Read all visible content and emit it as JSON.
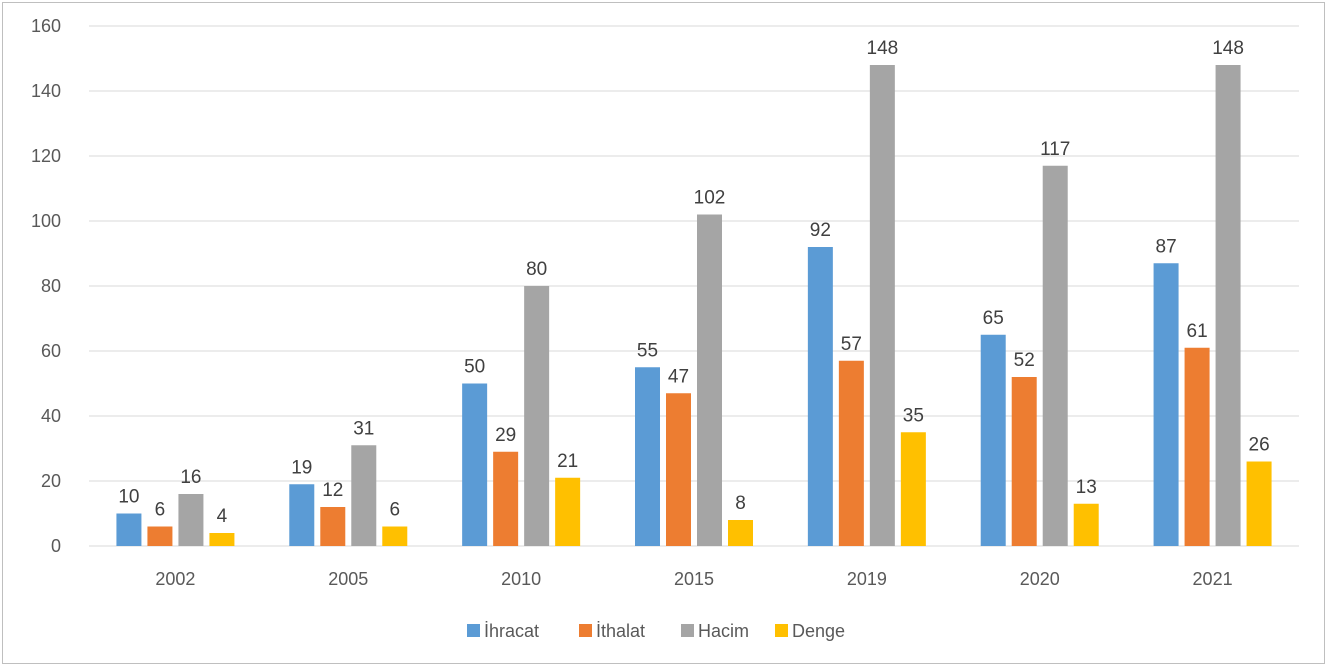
{
  "chart_data": {
    "type": "bar",
    "title": "",
    "xlabel": "",
    "ylabel": "",
    "categories": [
      "2002",
      "2005",
      "2010",
      "2015",
      "2019",
      "2020",
      "2021"
    ],
    "series": [
      {
        "name": "İhracat",
        "color": "#5b9bd5",
        "values": [
          10,
          19,
          50,
          55,
          92,
          65,
          87
        ]
      },
      {
        "name": "İthalat",
        "color": "#ed7d31",
        "values": [
          6,
          12,
          29,
          47,
          57,
          52,
          61
        ]
      },
      {
        "name": "Hacim",
        "color": "#a5a5a5",
        "values": [
          16,
          31,
          80,
          102,
          148,
          117,
          148
        ]
      },
      {
        "name": "Denge",
        "color": "#ffc000",
        "values": [
          4,
          6,
          21,
          8,
          35,
          13,
          26
        ]
      }
    ],
    "ylim": [
      0,
      160
    ],
    "yticks": [
      0,
      20,
      40,
      60,
      80,
      100,
      120,
      140,
      160
    ],
    "grid": true,
    "legend_position": "bottom",
    "data_labels": true
  }
}
